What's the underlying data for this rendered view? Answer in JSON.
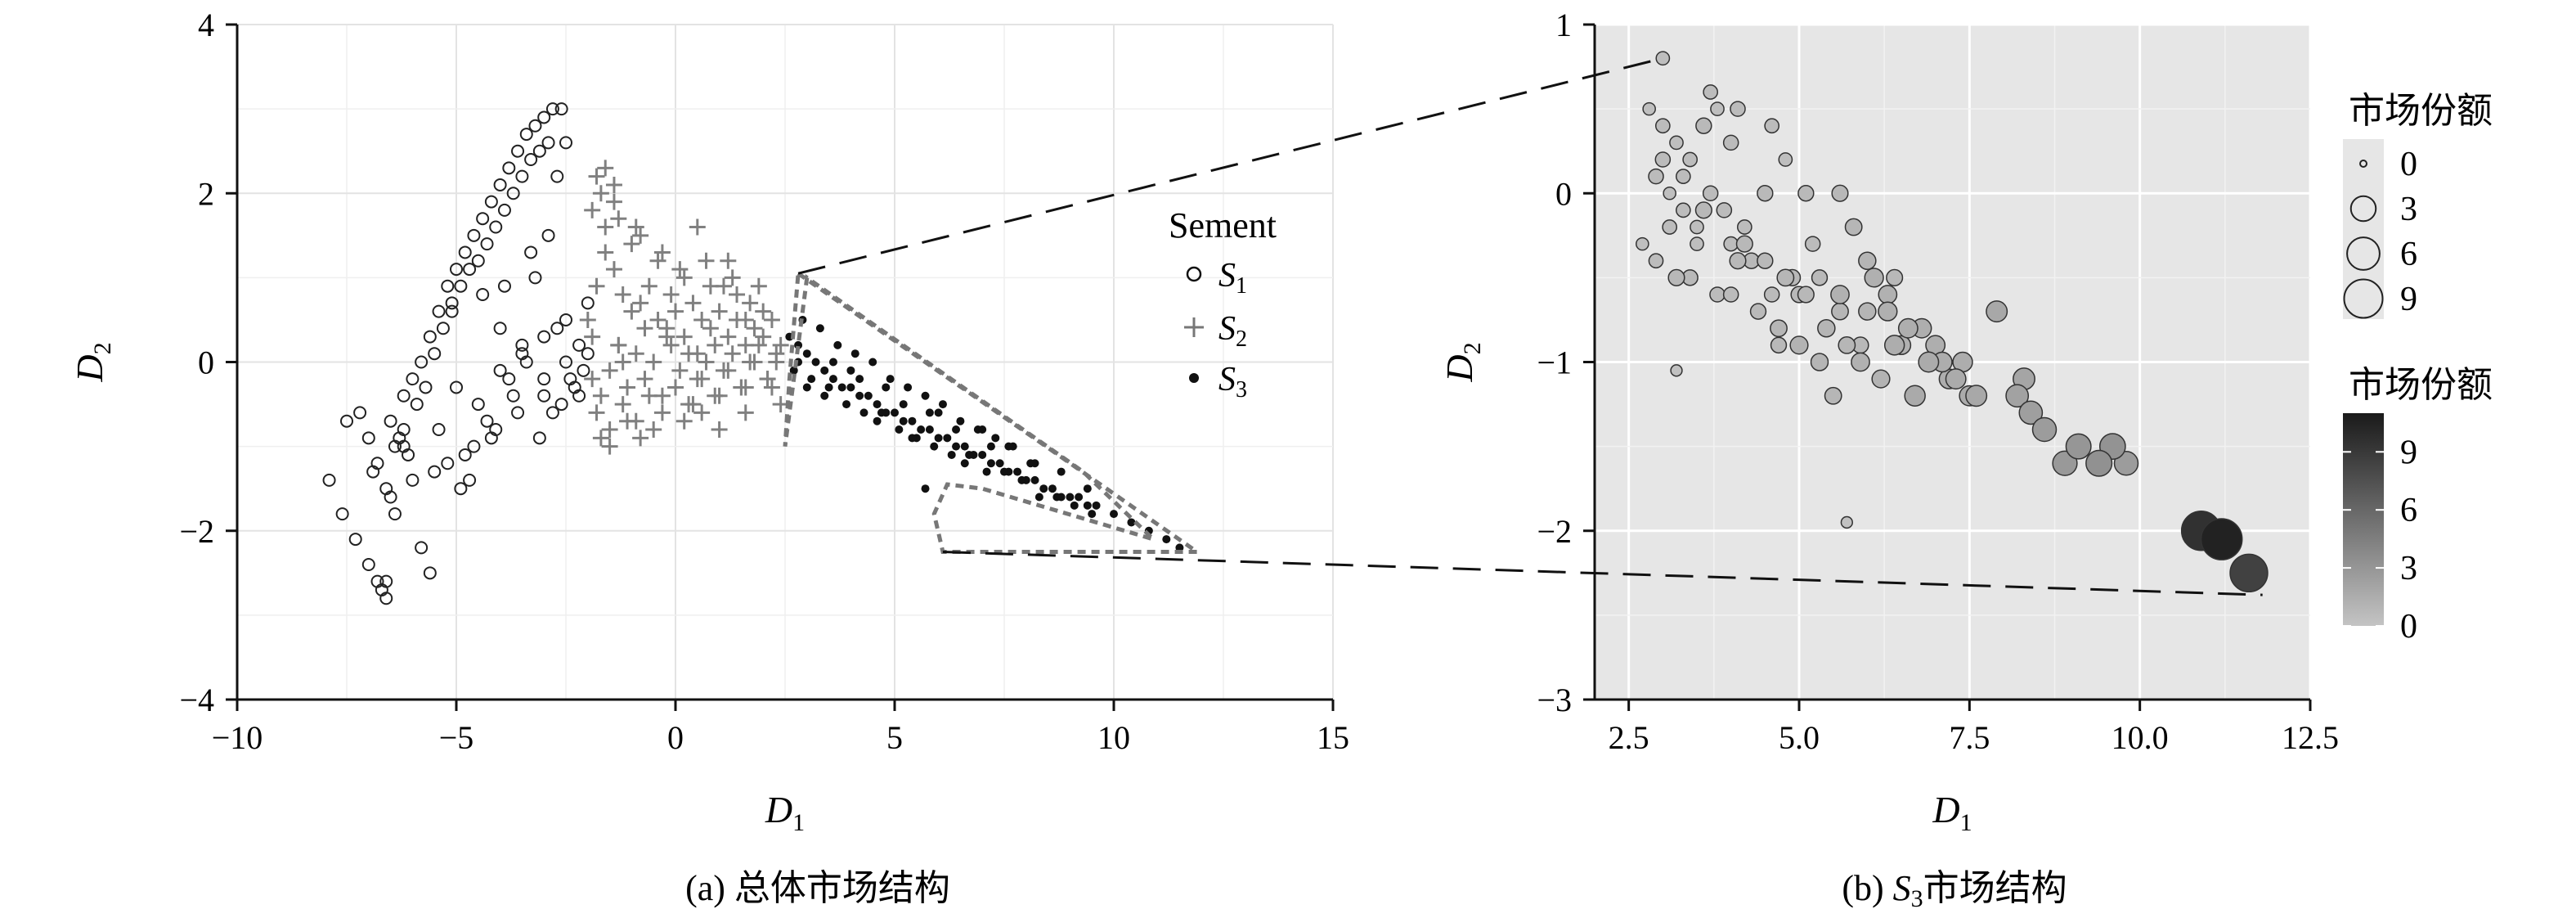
{
  "figure": {
    "caption_a": "(a) 总体市场结构",
    "caption_b_prefix": "(b) ",
    "caption_b_var": "S",
    "caption_b_sub": "3",
    "caption_b_suffix": "市场结构"
  },
  "chart_data": [
    {
      "type": "scatter",
      "panel": "a",
      "xlabel": "D",
      "xlabel_sub": "1",
      "ylabel": "D",
      "ylabel_sub": "2",
      "xlim": [
        -10,
        15
      ],
      "ylim": [
        -4,
        4
      ],
      "xticks": [
        -10,
        -5,
        0,
        5,
        10,
        15
      ],
      "yticks": [
        -4,
        -2,
        0,
        2,
        4
      ],
      "xtick_labels": [
        "−10",
        "−5",
        "0",
        "5",
        "10",
        "15"
      ],
      "ytick_labels": [
        "−4",
        "−2",
        "0",
        "2",
        "4"
      ],
      "grid": true,
      "legend": {
        "title": "Sement",
        "placement": "right",
        "entries": [
          {
            "symbol": "○",
            "var": "S",
            "sub": "1"
          },
          {
            "symbol": "+",
            "var": "S",
            "sub": "2"
          },
          {
            "symbol": "●",
            "var": "S",
            "sub": "3"
          }
        ]
      },
      "series": [
        {
          "key": "S1",
          "marker": "circle-open",
          "x": [
            -7.9,
            -7.6,
            -7.3,
            -7.0,
            -6.8,
            -6.6,
            -6.2,
            -6.0,
            -5.8,
            -5.6,
            -5.4,
            -5.2,
            -5.0,
            -4.8,
            -4.6,
            -4.4,
            -4.2,
            -4.0,
            -3.8,
            -3.6,
            -3.4,
            -3.2,
            -3.0,
            -2.8,
            -2.6,
            -2.5,
            -6.5,
            -6.3,
            -6.1,
            -5.9,
            -5.7,
            -5.5,
            -5.3,
            -5.1,
            -4.9,
            -4.7,
            -4.5,
            -4.3,
            -4.1,
            -3.9,
            -3.7,
            -3.5,
            -3.3,
            -3.1,
            -2.9,
            -2.7,
            -7.2,
            -7.0,
            -6.8,
            -6.6,
            -6.4,
            -6.2,
            -7.5,
            -6.9,
            -6.5,
            -5.8,
            -5.2,
            -4.6,
            -4.1,
            -3.6,
            -3.0,
            -2.4,
            -5.0,
            -4.5,
            -4.0,
            -3.5,
            -3.0,
            -2.5,
            -2.2,
            -5.4,
            -4.8,
            -4.2,
            -3.8,
            -3.4,
            -2.8,
            -2.3,
            -6.0,
            -5.5,
            -4.9,
            -4.3,
            -3.7,
            -3.1,
            -2.6,
            -5.1,
            -4.4,
            -3.9,
            -3.2,
            -2.7,
            -2.1,
            -5.6,
            -4.7,
            -3.3,
            -2.9,
            -2.0,
            -4.0,
            -3.5,
            -3.0,
            -2.5,
            -2.2,
            -2.0,
            -6.7,
            -6.6,
            -6.4,
            -6.2
          ],
          "y": [
            -1.4,
            -1.8,
            -2.1,
            -2.4,
            -2.6,
            -2.8,
            -0.4,
            -0.2,
            0.0,
            0.3,
            0.6,
            0.9,
            1.1,
            1.3,
            1.5,
            1.7,
            1.9,
            2.1,
            2.3,
            2.5,
            2.7,
            2.8,
            2.9,
            3.0,
            3.0,
            2.6,
            -0.7,
            -0.9,
            -1.1,
            -0.5,
            -0.3,
            0.1,
            0.4,
            0.7,
            0.9,
            1.1,
            1.2,
            1.4,
            1.6,
            1.8,
            2.0,
            2.2,
            2.4,
            2.5,
            2.6,
            2.2,
            -0.6,
            -0.9,
            -1.2,
            -1.5,
            -1.0,
            -0.8,
            -0.7,
            -1.3,
            -1.6,
            -2.2,
            -1.2,
            -1.0,
            -0.8,
            -0.6,
            -0.4,
            -0.2,
            -0.3,
            -0.5,
            -0.1,
            0.1,
            0.3,
            0.5,
            0.2,
            -0.8,
            -1.1,
            -0.9,
            -0.2,
            0.0,
            -0.6,
            -0.3,
            -1.4,
            -1.3,
            -1.5,
            -0.7,
            -0.4,
            -0.9,
            -0.5,
            0.6,
            0.8,
            0.9,
            1.0,
            0.4,
            -0.1,
            -2.5,
            -1.4,
            1.3,
            1.5,
            0.7,
            0.4,
            0.2,
            -0.2,
            0.0,
            -0.4,
            0.1,
            -2.7,
            -2.6,
            -1.8,
            -1.0
          ]
        },
        {
          "key": "S2",
          "marker": "plus",
          "x": [
            -2.0,
            -1.8,
            -1.6,
            -1.4,
            -1.2,
            -1.0,
            -0.8,
            -0.6,
            -0.4,
            -0.2,
            0.0,
            0.2,
            0.4,
            0.6,
            0.8,
            1.0,
            1.2,
            1.4,
            1.6,
            1.8,
            2.0,
            2.2,
            2.4,
            -1.9,
            -1.7,
            -1.5,
            -1.3,
            -1.1,
            -0.9,
            -0.7,
            -0.5,
            -0.3,
            -0.1,
            0.1,
            0.3,
            0.5,
            0.7,
            0.9,
            1.1,
            1.3,
            1.5,
            1.7,
            1.9,
            2.1,
            2.3,
            -1.8,
            -1.5,
            -1.2,
            -0.9,
            -0.6,
            -0.3,
            0.0,
            0.3,
            0.6,
            0.9,
            1.2,
            1.5,
            1.8,
            2.1,
            -1.6,
            -1.0,
            -0.4,
            0.2,
            0.8,
            1.4,
            2.0,
            -1.9,
            -1.3,
            -0.7,
            -0.1,
            0.5,
            1.1,
            1.7,
            2.3,
            -1.7,
            -1.1,
            -0.5,
            0.4,
            1.0,
            1.6,
            2.2,
            -1.4,
            -0.8,
            0.1,
            0.7,
            1.3,
            1.9,
            -1.2,
            -0.2,
            0.6,
            1.6,
            -1.5,
            -0.8,
            0.2,
            1.0,
            1.6,
            2.4,
            -1.8,
            -1.6,
            -1.4,
            -1.9,
            -1.7,
            -1.3,
            -0.9,
            -0.3,
            0.5,
            1.2
          ],
          "y": [
            0.5,
            0.9,
            1.3,
            1.1,
            0.8,
            0.6,
            0.7,
            0.9,
            0.5,
            0.4,
            0.6,
            0.3,
            0.7,
            0.5,
            0.4,
            0.6,
            0.3,
            0.5,
            0.2,
            0.4,
            0.3,
            0.5,
            0.2,
            -0.2,
            -0.4,
            -0.1,
            0.2,
            -0.3,
            0.1,
            -0.2,
            0.0,
            -0.4,
            0.2,
            -0.1,
            0.1,
            -0.2,
            0.0,
            0.2,
            -0.1,
            0.1,
            -0.3,
            0.0,
            0.2,
            -0.2,
            0.1,
            -0.6,
            -0.8,
            -0.5,
            -0.7,
            -0.4,
            -0.6,
            -0.3,
            -0.5,
            -0.2,
            -0.4,
            -0.1,
            -0.3,
            0.0,
            -0.2,
            1.6,
            1.4,
            1.2,
            1.0,
            0.9,
            0.8,
            0.6,
            0.3,
            0.2,
            0.4,
            0.8,
            0.1,
            0.9,
            0.7,
            0.0,
            -0.9,
            -0.7,
            -0.8,
            -0.5,
            -0.4,
            -0.6,
            -0.3,
            1.9,
            1.5,
            1.1,
            1.2,
            1.0,
            0.9,
            0.0,
            0.3,
            -0.6,
            0.5,
            -1.0,
            -0.9,
            -0.7,
            -0.8,
            -0.3,
            -0.5,
            2.2,
            2.3,
            2.1,
            1.8,
            2.0,
            1.7,
            1.6,
            1.3,
            1.6,
            1.2
          ]
        },
        {
          "key": "S3",
          "marker": "dot",
          "x": [
            2.6,
            2.8,
            3.0,
            3.2,
            3.4,
            3.6,
            3.8,
            4.0,
            4.2,
            4.4,
            4.6,
            4.8,
            5.0,
            5.2,
            5.4,
            5.6,
            5.8,
            6.0,
            6.2,
            6.4,
            6.6,
            6.8,
            7.0,
            7.2,
            7.4,
            7.6,
            7.8,
            8.0,
            8.2,
            8.4,
            8.6,
            8.8,
            9.0,
            9.2,
            9.4,
            9.6,
            10.0,
            10.4,
            10.8,
            11.2,
            11.5,
            2.7,
            3.1,
            3.5,
            3.9,
            4.3,
            4.7,
            5.1,
            5.5,
            5.9,
            6.3,
            6.7,
            7.1,
            7.5,
            7.9,
            8.3,
            8.7,
            9.1,
            9.5,
            2.9,
            3.3,
            3.7,
            4.1,
            4.5,
            4.9,
            5.3,
            5.7,
            6.1,
            6.5,
            6.9,
            7.3,
            7.7,
            8.1,
            2.8,
            3.4,
            4.0,
            4.6,
            5.2,
            5.8,
            6.4,
            7.0,
            7.6,
            8.2,
            8.8,
            9.4,
            3.0,
            3.6,
            4.2,
            4.8,
            5.4,
            6.0,
            6.6,
            7.2,
            5.7
          ],
          "y": [
            0.3,
            0.2,
            0.1,
            0.0,
            -0.1,
            -0.2,
            -0.3,
            -0.3,
            -0.4,
            -0.4,
            -0.5,
            -0.6,
            -0.6,
            -0.7,
            -0.7,
            -0.8,
            -0.8,
            -0.9,
            -0.9,
            -1.0,
            -1.0,
            -1.1,
            -1.1,
            -1.2,
            -1.2,
            -1.3,
            -1.3,
            -1.4,
            -1.4,
            -1.5,
            -1.5,
            -1.6,
            -1.6,
            -1.6,
            -1.7,
            -1.7,
            -1.8,
            -1.9,
            -2.0,
            -2.1,
            -2.2,
            -0.1,
            -0.2,
            -0.3,
            -0.5,
            -0.6,
            -0.6,
            -0.8,
            -0.9,
            -1.0,
            -1.1,
            -1.1,
            -1.3,
            -1.3,
            -1.4,
            -1.6,
            -1.6,
            -1.7,
            -1.8,
            0.5,
            0.4,
            0.2,
            0.1,
            0.0,
            -0.2,
            -0.3,
            -0.4,
            -0.5,
            -0.7,
            -0.8,
            -0.9,
            -1.0,
            -1.2,
            0.0,
            -0.4,
            -0.1,
            -0.7,
            -0.5,
            -0.6,
            -0.8,
            -0.8,
            -1.0,
            -1.2,
            -1.3,
            -1.5,
            -0.3,
            0.0,
            -0.2,
            -0.3,
            -0.9,
            -0.6,
            -1.2,
            -1.0,
            -1.5
          ]
        }
      ]
    },
    {
      "type": "scatter",
      "panel": "b",
      "xlabel": "D",
      "xlabel_sub": "1",
      "ylabel": "D",
      "ylabel_sub": "2",
      "xlim": [
        2.0,
        12.5
      ],
      "ylim": [
        -3,
        1
      ],
      "xticks": [
        2.5,
        5.0,
        7.5,
        10.0,
        12.5
      ],
      "yticks": [
        -3,
        -2,
        -1,
        0,
        1
      ],
      "xtick_labels": [
        "2.5",
        "5.0",
        "7.5",
        "10.0",
        "12.5"
      ],
      "ytick_labels": [
        "−3",
        "−2",
        "−1",
        "0",
        "1"
      ],
      "grid": true,
      "background": "#e6e6e6",
      "size_legend": {
        "title": "市场份额",
        "placement": "right-top",
        "values": [
          0,
          3,
          6,
          9
        ],
        "labels": [
          "0",
          "3",
          "6",
          "9"
        ]
      },
      "color_legend": {
        "title": "市场份额",
        "placement": "right-bottom",
        "ticks": [
          0,
          3,
          6,
          9
        ],
        "labels": [
          "0",
          "3",
          "6",
          "9"
        ],
        "range": [
          0,
          11
        ],
        "low_color": "#c4c4c4",
        "high_color": "#1a1a1a"
      },
      "points": {
        "x": [
          2.8,
          3.0,
          3.2,
          2.9,
          3.1,
          3.4,
          3.6,
          3.8,
          4.0,
          3.3,
          3.5,
          3.7,
          2.7,
          2.9,
          3.2,
          3.5,
          3.9,
          4.2,
          4.5,
          4.8,
          3.0,
          3.3,
          3.6,
          4.0,
          4.3,
          4.6,
          4.9,
          5.2,
          3.1,
          3.4,
          3.8,
          4.1,
          4.4,
          4.7,
          5.0,
          5.3,
          5.6,
          5.9,
          4.2,
          4.5,
          4.8,
          5.1,
          5.4,
          5.7,
          6.0,
          6.3,
          6.6,
          5.0,
          5.3,
          5.6,
          5.9,
          6.2,
          6.5,
          6.8,
          7.1,
          7.4,
          6.0,
          6.3,
          6.6,
          6.9,
          7.2,
          7.5,
          5.8,
          6.1,
          6.4,
          6.7,
          7.0,
          7.3,
          7.6,
          3.7,
          4.1,
          4.6,
          5.1,
          5.6,
          3.0,
          4.0,
          4.7,
          5.5,
          6.4,
          7.1,
          7.9,
          8.2,
          8.4,
          8.6,
          8.3,
          8.9,
          9.1,
          9.4,
          9.6,
          9.8,
          3.2,
          5.7,
          10.9,
          11.2,
          11.6
        ],
        "y": [
          0.5,
          0.4,
          0.3,
          0.1,
          0.0,
          0.2,
          0.4,
          0.5,
          0.3,
          -0.1,
          -0.2,
          0.0,
          -0.3,
          -0.4,
          -0.5,
          -0.3,
          -0.1,
          -0.2,
          0.0,
          0.2,
          0.2,
          0.1,
          -0.1,
          -0.3,
          -0.4,
          -0.6,
          -0.5,
          -0.3,
          -0.2,
          -0.5,
          -0.6,
          -0.4,
          -0.7,
          -0.8,
          -0.6,
          -0.5,
          -0.7,
          -0.9,
          -0.3,
          -0.4,
          -0.5,
          -0.6,
          -0.8,
          -0.9,
          -0.7,
          -0.6,
          -0.8,
          -0.9,
          -1.0,
          -0.6,
          -1.0,
          -1.1,
          -0.9,
          -0.8,
          -1.0,
          -1.0,
          -0.4,
          -0.7,
          -0.8,
          -1.0,
          -1.1,
          -1.2,
          -0.2,
          -0.5,
          -0.9,
          -1.2,
          -0.9,
          -1.1,
          -1.2,
          0.6,
          0.5,
          0.4,
          0.0,
          0.0,
          0.8,
          -0.6,
          -0.9,
          -1.2,
          -0.5,
          -1.0,
          -0.7,
          -1.2,
          -1.3,
          -1.4,
          -1.1,
          -1.6,
          -1.5,
          -1.6,
          -1.5,
          -1.6,
          -1.05,
          -1.95,
          -2.0,
          -2.05,
          -2.25
        ],
        "share": [
          0.3,
          0.5,
          0.4,
          0.6,
          0.3,
          0.5,
          0.7,
          0.4,
          0.6,
          0.5,
          0.4,
          0.6,
          0.3,
          0.5,
          0.8,
          0.4,
          0.6,
          0.5,
          0.7,
          0.4,
          0.6,
          0.5,
          0.8,
          0.5,
          0.7,
          0.6,
          0.8,
          0.6,
          0.5,
          0.7,
          0.6,
          0.8,
          0.7,
          0.9,
          0.8,
          0.7,
          0.9,
          0.8,
          0.8,
          0.7,
          0.9,
          0.8,
          1.0,
          0.9,
          1.0,
          1.2,
          1.0,
          1.1,
          1.0,
          1.2,
          1.2,
          1.1,
          1.3,
          1.4,
          1.2,
          1.5,
          1.0,
          1.3,
          1.4,
          1.6,
          1.5,
          1.6,
          0.9,
          1.3,
          1.5,
          1.7,
          1.4,
          1.6,
          1.8,
          0.5,
          0.6,
          0.5,
          0.7,
          0.8,
          0.4,
          0.6,
          0.7,
          0.9,
          0.8,
          1.5,
          1.8,
          2.2,
          2.4,
          2.6,
          2.0,
          2.8,
          3.0,
          3.3,
          3.2,
          2.6,
          0.2,
          0.2,
          9.5,
          10.5,
          8.5
        ]
      },
      "zoom_lines": {
        "style": "dashed",
        "from_panel": "a",
        "to_panel": "b"
      }
    }
  ]
}
